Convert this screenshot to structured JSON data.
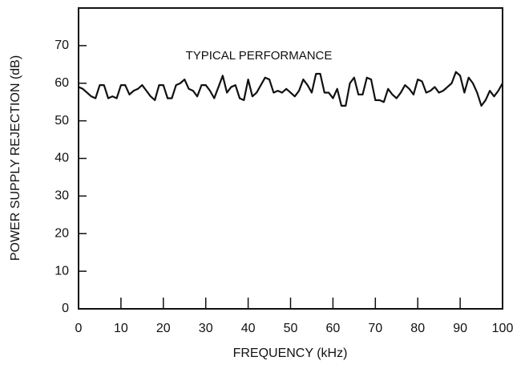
{
  "chart_data": {
    "type": "line",
    "annotation": "TYPICAL PERFORMANCE",
    "x_label": "FREQUENCY (kHz)",
    "y_label": "POWER SUPPLY REJECTION (dB)",
    "x": [
      0,
      1,
      2,
      3,
      4,
      5,
      6,
      7,
      8,
      9,
      10,
      11,
      12,
      13,
      14,
      15,
      16,
      17,
      18,
      19,
      20,
      21,
      22,
      23,
      24,
      25,
      26,
      27,
      28,
      29,
      30,
      31,
      32,
      33,
      34,
      35,
      36,
      37,
      38,
      39,
      40,
      41,
      42,
      43,
      44,
      45,
      46,
      47,
      48,
      49,
      50,
      51,
      52,
      53,
      54,
      55,
      56,
      57,
      58,
      59,
      60,
      61,
      62,
      63,
      64,
      65,
      66,
      67,
      68,
      69,
      70,
      71,
      72,
      73,
      74,
      75,
      76,
      77,
      78,
      79,
      80,
      81,
      82,
      83,
      84,
      85,
      86,
      87,
      88,
      89,
      90,
      91,
      92,
      93,
      94,
      95,
      96,
      97,
      98,
      99,
      100
    ],
    "series": [
      {
        "color": "#111111",
        "values": [
          59,
          58.5,
          57.5,
          56.5,
          56,
          59.5,
          59.5,
          56,
          56.5,
          56,
          59.5,
          59.5,
          57,
          58,
          58.5,
          59.5,
          58,
          56.5,
          55.5,
          59.5,
          59.5,
          56,
          56,
          59.5,
          60,
          61,
          58.5,
          58,
          56.5,
          59.5,
          59.5,
          58,
          56,
          59,
          62,
          57.5,
          59,
          59.5,
          56,
          55.5,
          61,
          56.5,
          57.5,
          59.5,
          61.5,
          61,
          57.5,
          58,
          57.5,
          58.5,
          57.5,
          56.5,
          58,
          61,
          59.5,
          57.5,
          62.5,
          62.5,
          57.5,
          57.5,
          56,
          58.5,
          54,
          54,
          60,
          61.5,
          57,
          57,
          61.5,
          61,
          55.5,
          55.5,
          55,
          58.5,
          57,
          56,
          57.5,
          59.5,
          58.5,
          57,
          61,
          60.5,
          57.5,
          58,
          59,
          57.5,
          58,
          59,
          60,
          63,
          62,
          57.5,
          61.5,
          60,
          57.5,
          54,
          55.5,
          58,
          56.5,
          58,
          60
        ]
      }
    ],
    "xlim": [
      0,
      100
    ],
    "xticks": [
      0,
      10,
      20,
      30,
      40,
      50,
      60,
      70,
      80,
      90,
      100
    ],
    "ylim": [
      0,
      80
    ],
    "yticks": [
      0,
      10,
      20,
      30,
      40,
      50,
      60,
      70
    ]
  }
}
